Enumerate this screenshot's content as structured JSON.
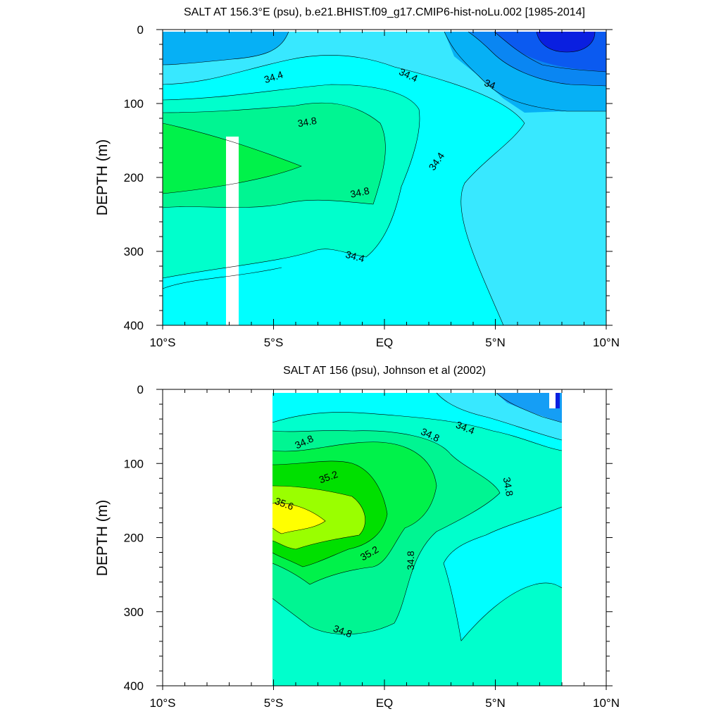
{
  "chart_data": [
    {
      "type": "heatmap",
      "subtype": "filled-contour",
      "title": "SALT AT 156.3°E (psu), b.e21.BHIST.f09_g17.CMIP6-hist-noLu.002 [1985-2014]",
      "xlabel": "",
      "ylabel": "DEPTH (m)",
      "x_range": [
        -10,
        10
      ],
      "y_range": [
        0,
        400
      ],
      "y_inverted": true,
      "x_ticks": [
        -10,
        -5,
        0,
        5,
        10
      ],
      "x_tick_labels": [
        "10°S",
        "5°S",
        "EQ",
        "5°N",
        "10°N"
      ],
      "y_ticks": [
        0,
        100,
        200,
        300,
        400
      ],
      "y_tick_labels": [
        "0",
        "100",
        "200",
        "300",
        "400"
      ],
      "contour_labels": [
        "34.4",
        "34.4",
        "34",
        "34.8",
        "34.4",
        "34.8",
        "34.4"
      ],
      "colors": {
        "salt_33_4": "#0a1fe0",
        "salt_33_6": "#0b5af0",
        "salt_33_8": "#0a86f2",
        "salt_34_0": "#06b0f5",
        "salt_34_2": "#38e8ff",
        "salt_34_4": "#00ffff",
        "salt_34_6": "#00ffcc",
        "salt_34_8": "#00f592",
        "salt_35_0": "#00f24a"
      }
    },
    {
      "type": "heatmap",
      "subtype": "filled-contour",
      "title": "SALT AT 156 (psu), Johnson et al (2002)",
      "xlabel": "",
      "ylabel": "DEPTH (m)",
      "x_range": [
        -10,
        10
      ],
      "y_range": [
        0,
        400
      ],
      "y_inverted": true,
      "data_x_extent": [
        -5,
        8
      ],
      "x_ticks": [
        -10,
        -5,
        0,
        5,
        10
      ],
      "x_tick_labels": [
        "10°S",
        "5°S",
        "EQ",
        "5°N",
        "10°N"
      ],
      "y_ticks": [
        0,
        100,
        200,
        300,
        400
      ],
      "y_tick_labels": [
        "0",
        "100",
        "200",
        "300",
        "400"
      ],
      "contour_labels": [
        "34.8",
        "34.8",
        "34.4",
        "35.2",
        "34.8",
        "35.6",
        "35.2",
        "34.8",
        "34.8"
      ],
      "colors": {
        "salt_33_8": "#0a86f2",
        "salt_34_2": "#38e8ff",
        "salt_34_4": "#00ffff",
        "salt_34_6": "#00ffcc",
        "salt_34_8": "#00f592",
        "salt_35_0": "#00f24a",
        "salt_35_4": "#9aff00",
        "salt_35_6": "#ffff00"
      }
    }
  ]
}
